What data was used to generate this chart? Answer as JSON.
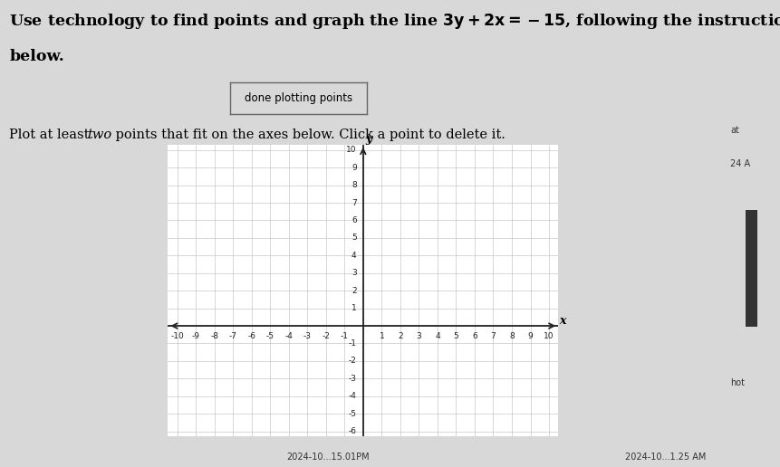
{
  "button_text": "done plotting points",
  "xlim": [
    -10,
    10
  ],
  "ylim": [
    -6,
    10
  ],
  "xlabel": "x",
  "ylabel": "y",
  "bg_color": "#d8d8d8",
  "plot_bg_color": "#ffffff",
  "grid_color": "#c8c8c8",
  "axis_color": "#222222",
  "text_color": "#000000",
  "timestamp_left": "2024-10...15.01PM",
  "timestamp_right": "2024-10...1.25 AM",
  "sidebar_text1": "at",
  "sidebar_text2": "24 A",
  "sidebar_text3": "hot"
}
